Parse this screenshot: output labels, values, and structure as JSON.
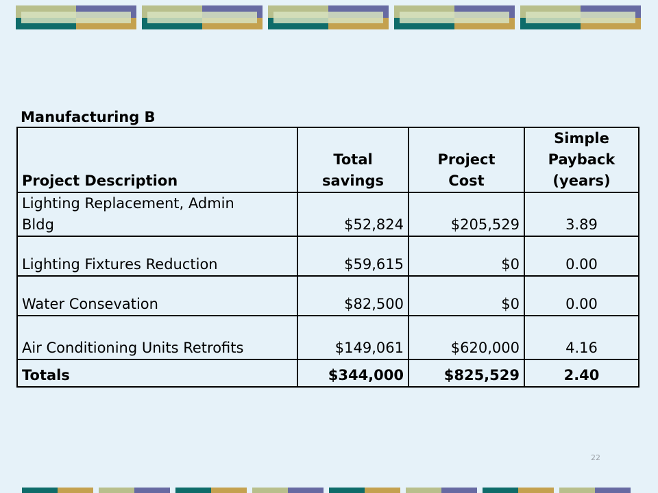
{
  "slide": {
    "title": "Manufacturing B",
    "page_number": "22"
  },
  "table": {
    "headers": {
      "description": "Project Description",
      "savings": [
        "Total",
        "savings"
      ],
      "cost": [
        "Project",
        "Cost"
      ],
      "payback": [
        "Simple",
        "Payback",
        "(years)"
      ]
    },
    "rows": [
      {
        "description": [
          "Lighting Replacement, Admin",
          "Bldg"
        ],
        "savings": "$52,824",
        "cost": "$205,529",
        "payback": "3.89"
      },
      {
        "description": [
          "Lighting Fixtures Reduction"
        ],
        "savings": "$59,615",
        "cost": "$0",
        "payback": "0.00"
      },
      {
        "description": [
          "Water Consevation"
        ],
        "savings": "$82,500",
        "cost": "$0",
        "payback": "0.00"
      },
      {
        "description": [
          "Air Conditioning Units Retrofits"
        ],
        "savings": "$149,061",
        "cost": "$620,000",
        "payback": "4.16"
      }
    ],
    "totals": {
      "label": "Totals",
      "savings": "$344,000",
      "cost": "$825,529",
      "payback": "2.40"
    }
  },
  "colors": {
    "background": "#e6f2f9",
    "teal": "#0f6c6a",
    "gold": "#c4a14f",
    "olive": "#b8bf8c",
    "purple": "#676aa2"
  }
}
